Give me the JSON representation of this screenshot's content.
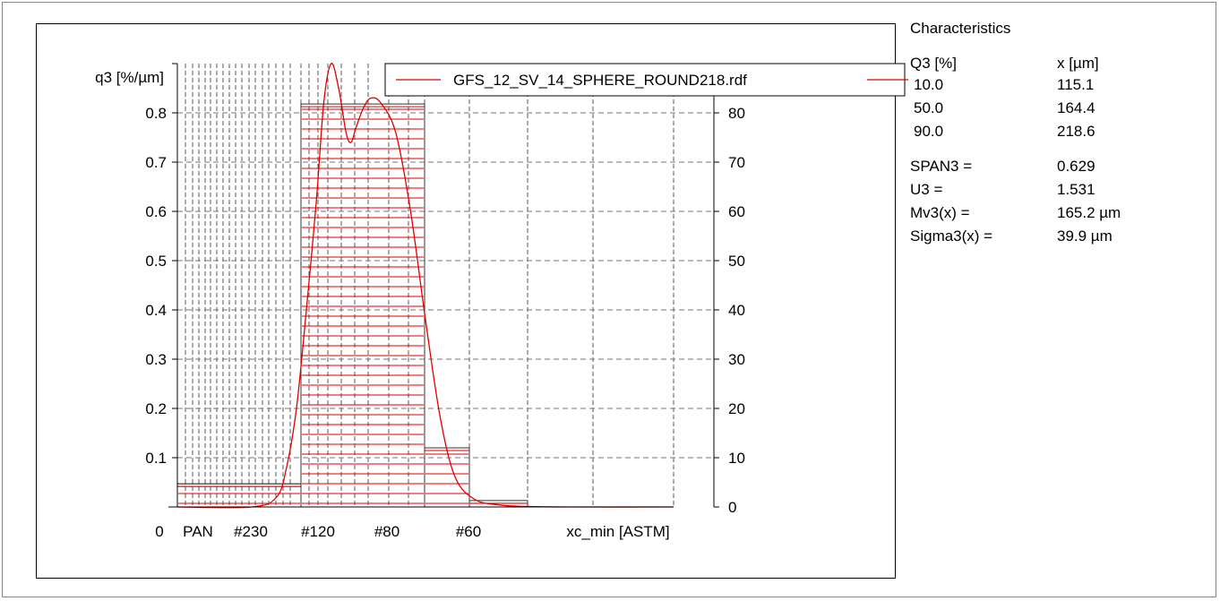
{
  "chart_data": {
    "type": "bar",
    "y_axis_label": "q3 [%/µm]",
    "x_axis_label": "xc_min [ASTM]",
    "left_y_ticks": [
      "0.1",
      "0.2",
      "0.3",
      "0.4",
      "0.5",
      "0.6",
      "0.7",
      "0.8"
    ],
    "right_y_ticks": [
      "0",
      "10",
      "20",
      "30",
      "40",
      "50",
      "60",
      "70",
      "80"
    ],
    "x_tick_labels": [
      "0",
      "PAN",
      "#230",
      "#120",
      "#80",
      "#60"
    ],
    "ylim_left": [
      0,
      0.9
    ],
    "ylim_right": [
      0,
      90
    ],
    "bins": [
      {
        "from": "PAN",
        "to": "#230",
        "value": 0.047
      },
      {
        "from": "#230",
        "to": "#120",
        "value": 0.047
      },
      {
        "from": "#120",
        "to": "#80",
        "value": 0.818
      },
      {
        "from": "#80",
        "to": "#60",
        "value": 0.12
      },
      {
        "from": "#60",
        "to": "",
        "value": 0.013
      },
      {
        "from": "",
        "to": "",
        "value": 0.0
      }
    ],
    "curve": {
      "name": "GFS_12_SV_14_SPHERE_ROUND218.rdf",
      "color": "#e00000",
      "points": [
        [
          0.0,
          0.0
        ],
        [
          0.15,
          0.0
        ],
        [
          0.2,
          0.02
        ],
        [
          0.22,
          0.08
        ],
        [
          0.24,
          0.2
        ],
        [
          0.26,
          0.4
        ],
        [
          0.28,
          0.62
        ],
        [
          0.295,
          0.82
        ],
        [
          0.31,
          0.9
        ],
        [
          0.325,
          0.85
        ],
        [
          0.34,
          0.76
        ],
        [
          0.35,
          0.74
        ],
        [
          0.36,
          0.77
        ],
        [
          0.375,
          0.81
        ],
        [
          0.39,
          0.83
        ],
        [
          0.41,
          0.82
        ],
        [
          0.44,
          0.76
        ],
        [
          0.47,
          0.6
        ],
        [
          0.5,
          0.38
        ],
        [
          0.53,
          0.18
        ],
        [
          0.56,
          0.06
        ],
        [
          0.6,
          0.015
        ],
        [
          0.65,
          0.004
        ],
        [
          0.7,
          0.001
        ],
        [
          0.8,
          0.0
        ],
        [
          1.0,
          0.0
        ]
      ]
    },
    "grid": true,
    "legend_position": "top-right"
  },
  "characteristics": {
    "title": "Characteristics",
    "q3_header": "Q3 [%]",
    "x_header": "x [µm]",
    "rows": [
      {
        "q3": "10.0",
        "x": "115.1"
      },
      {
        "q3": "50.0",
        "x": "164.4"
      },
      {
        "q3": "90.0",
        "x": "218.6"
      }
    ],
    "stats": [
      {
        "label": "SPAN3 =",
        "value": "0.629"
      },
      {
        "label": "U3 =",
        "value": "1.531"
      },
      {
        "label": "Mv3(x) =",
        "value": "165.2 µm"
      },
      {
        "label": "Sigma3(x) =",
        "value": "39.9 µm"
      }
    ]
  }
}
